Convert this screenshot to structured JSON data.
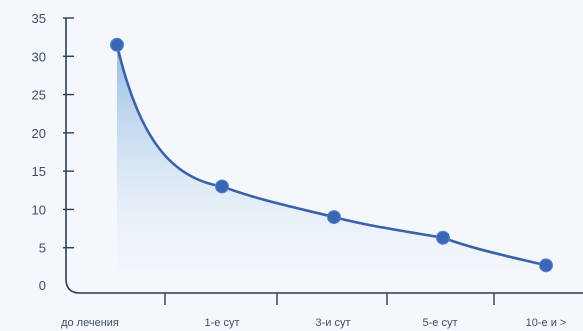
{
  "chart_data": {
    "type": "area",
    "title": "",
    "xlabel": "",
    "ylabel": "",
    "categories": [
      "до лечения",
      "1-е сут",
      "3-и сут",
      "5-е сут",
      "10-е и >"
    ],
    "series": [
      {
        "values": [
          31.5,
          13,
          9,
          6.3,
          2.7
        ]
      }
    ],
    "ylim": [
      0,
      35
    ],
    "yticks": [
      0,
      5,
      10,
      15,
      20,
      25,
      30,
      35
    ],
    "grid": false,
    "legend": "none",
    "colors": {
      "line": "#3b62a8",
      "marker": "#3a67b4",
      "fill_top": "#8fb8e0",
      "fill_bottom": "#eaf2fb",
      "axis": "#2a3d55",
      "text": "#3d4f63",
      "background": "#f4f7fb"
    }
  }
}
